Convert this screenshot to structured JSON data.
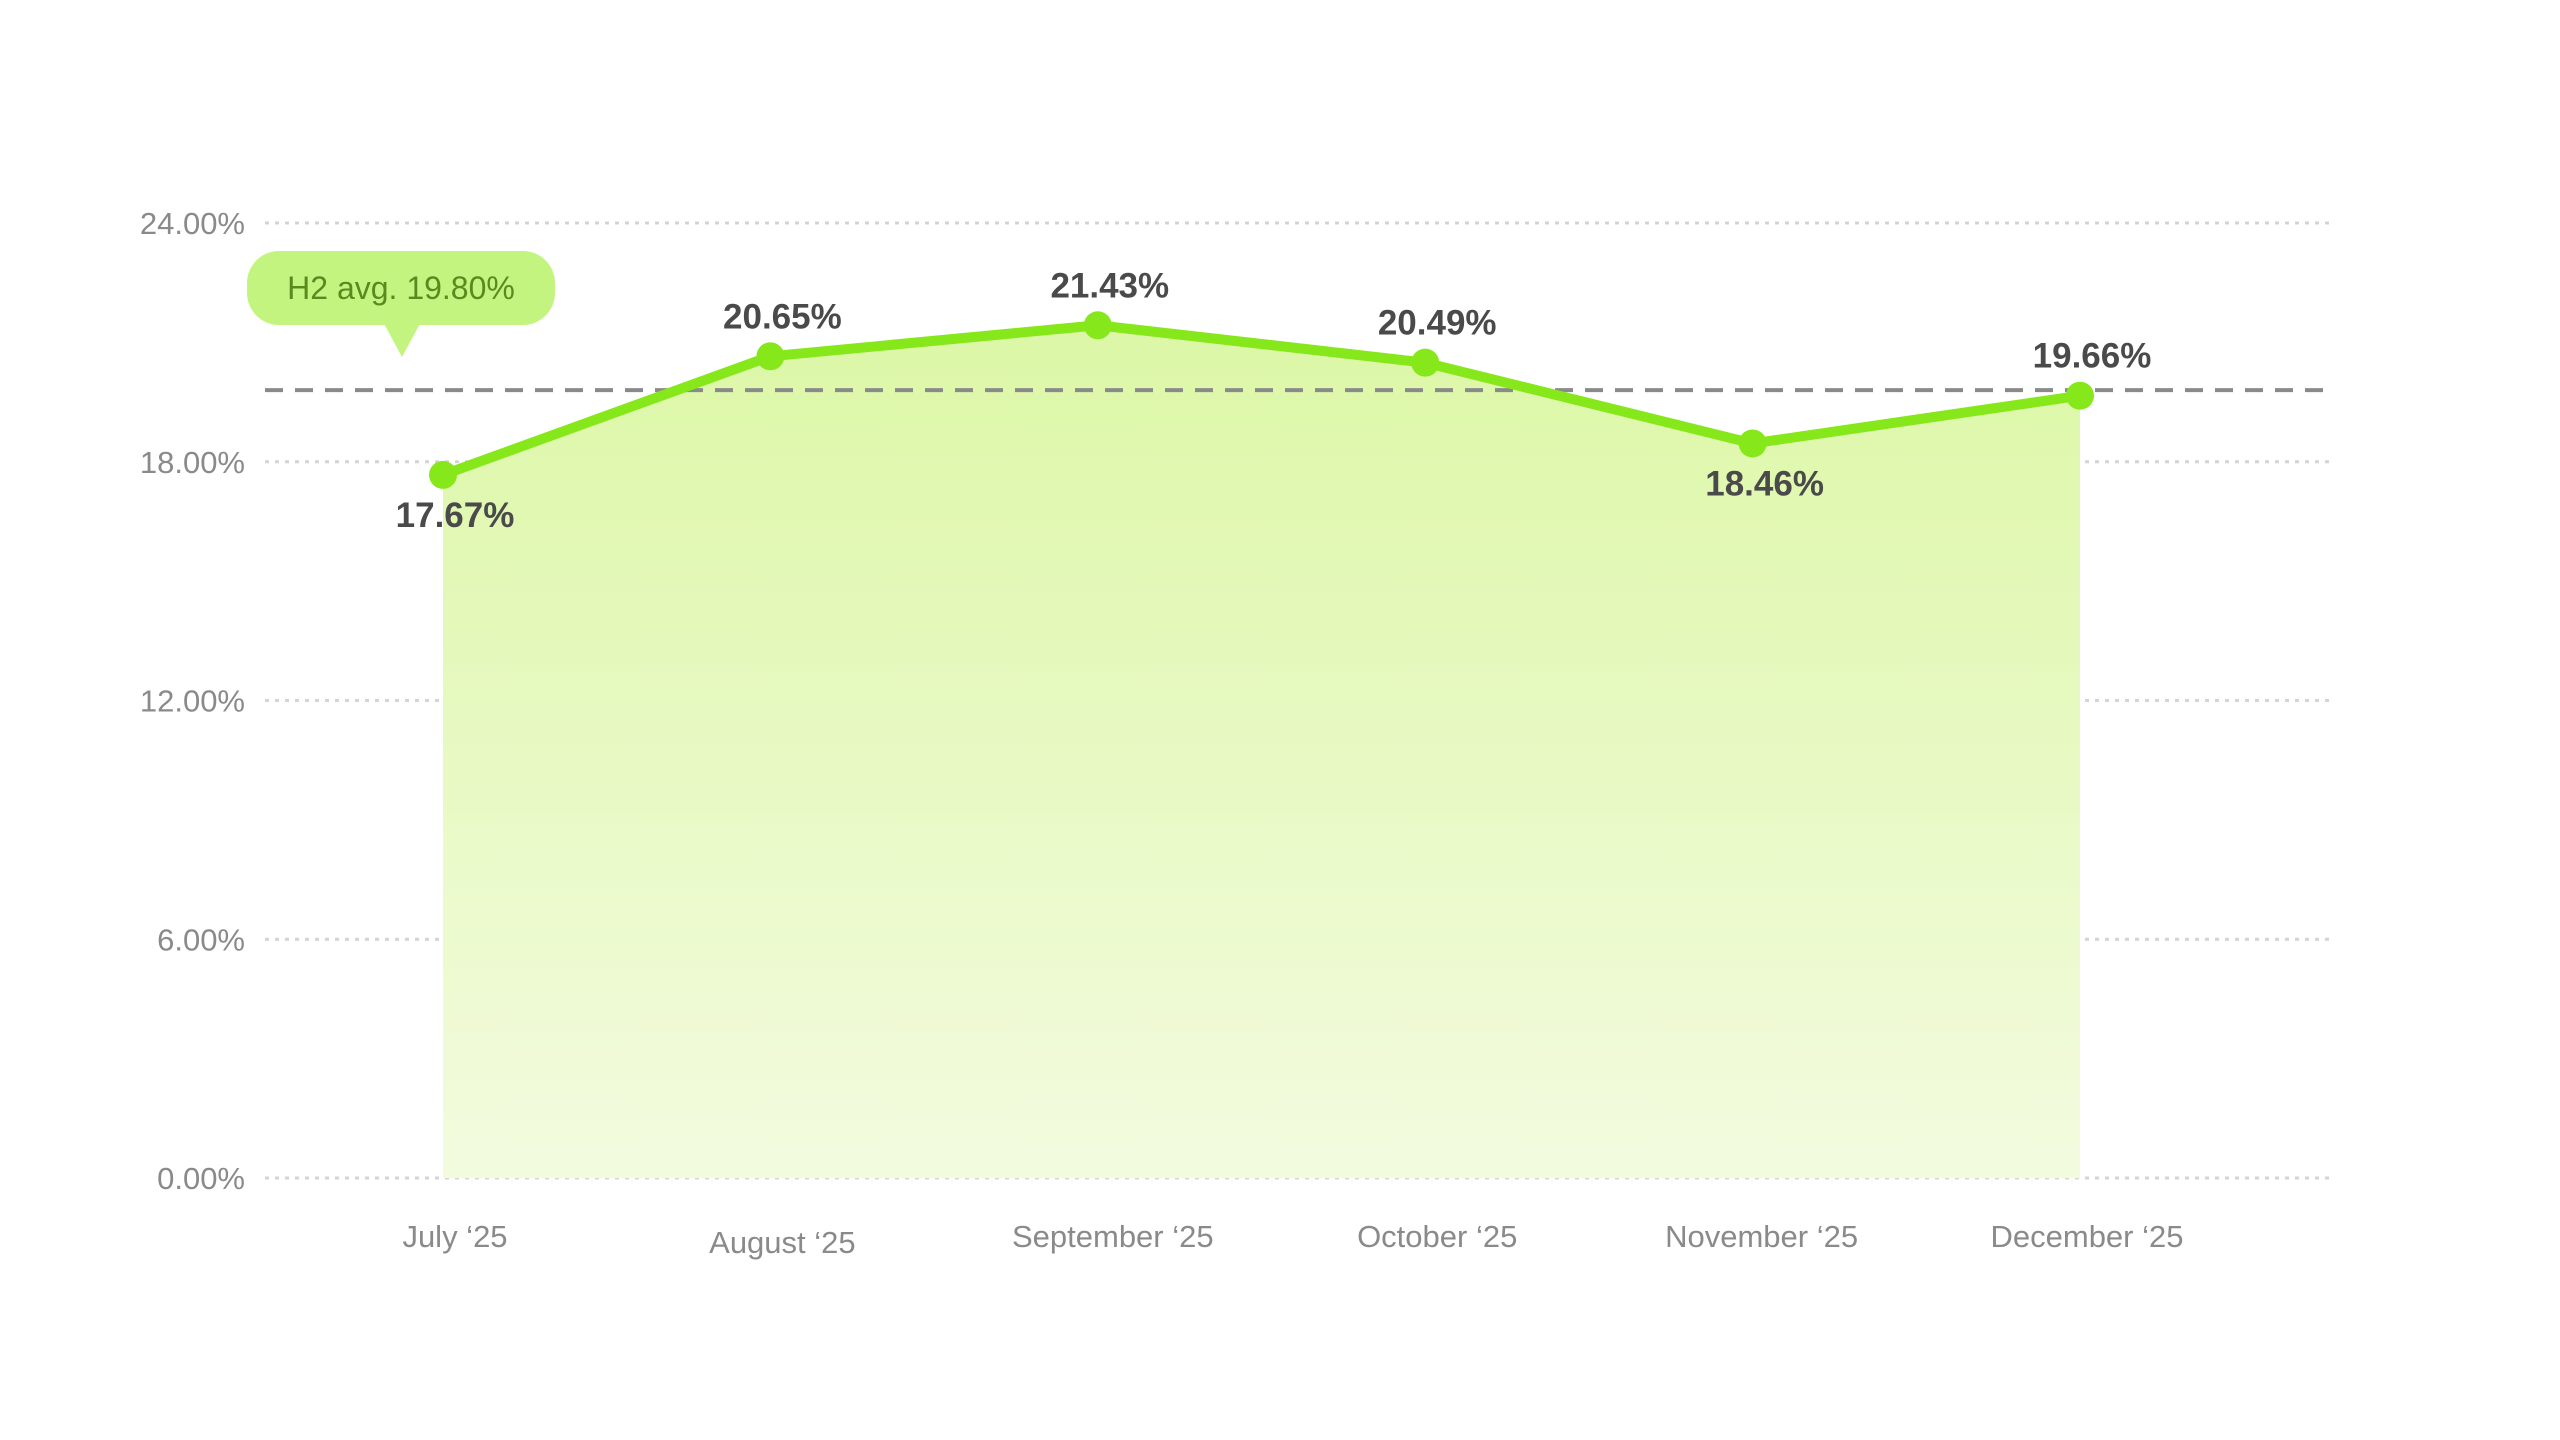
{
  "chart_data": {
    "type": "area",
    "categories": [
      "July ‘25",
      "August ‘25",
      "September ‘25",
      "October ‘25",
      "November ‘25",
      "December ‘25"
    ],
    "values": [
      17.67,
      20.65,
      21.43,
      20.49,
      18.46,
      19.66
    ],
    "value_labels": [
      "17.67%",
      "20.65%",
      "21.43%",
      "20.49%",
      "18.46%",
      "19.66%"
    ],
    "label_position": [
      "below",
      "above",
      "above",
      "above",
      "below",
      "above"
    ],
    "ylim": [
      0,
      24
    ],
    "yticks": [
      0,
      6,
      12,
      18,
      24
    ],
    "ytick_labels": [
      "0.00%",
      "6.00%",
      "12.00%",
      "18.00%",
      "24.00%"
    ],
    "grid": true,
    "average": {
      "value": 19.8,
      "label": "H2 avg. 19.80%"
    },
    "colors": {
      "line": "#86e81a",
      "fill_top": "#dcf7a6",
      "fill_bottom": "#f3fbdf",
      "grid": "#d4d4d4",
      "avg_line": "#8a8a8a",
      "avg_badge": "#c3f47f",
      "avg_text": "#5a8a1f"
    }
  }
}
